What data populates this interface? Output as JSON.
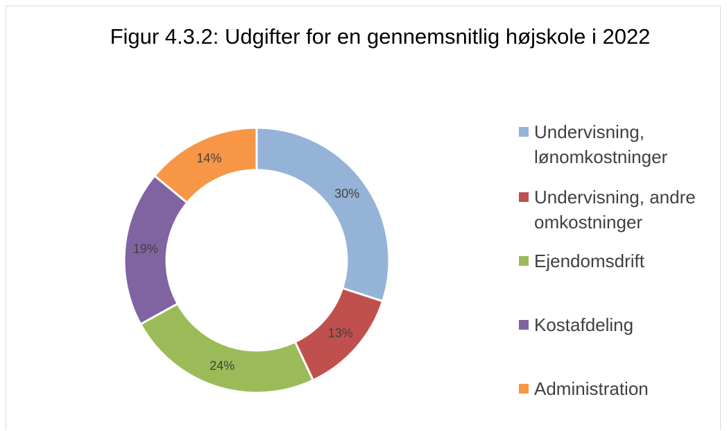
{
  "chart_data": {
    "type": "donut",
    "title": "Figur 4.3.2: Udgifter for en gennemsnitlig højskole i 2022",
    "categories": [
      "Undervisning, lønomkostninger",
      "Undervisning, andre omkostninger",
      "Ejendomsdrift",
      "Kostafdeling",
      "Administration"
    ],
    "values": [
      30,
      13,
      24,
      19,
      14
    ],
    "value_labels": [
      "30%",
      "13%",
      "24%",
      "19%",
      "14%"
    ],
    "colors": [
      "#95b3d7",
      "#c0504d",
      "#9bbb59",
      "#8064a2",
      "#f79646"
    ],
    "legend": "right"
  }
}
